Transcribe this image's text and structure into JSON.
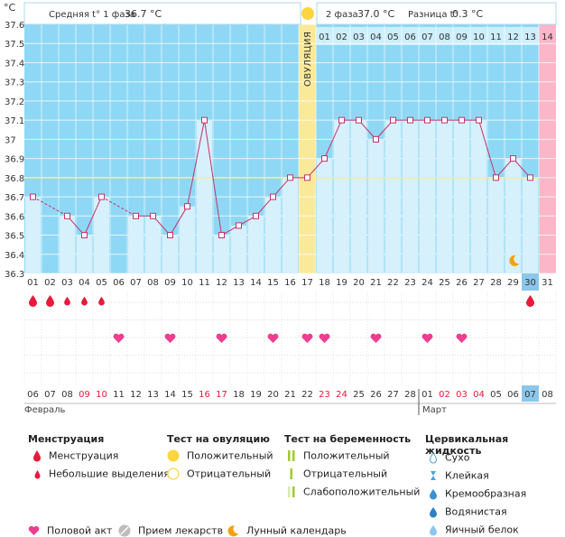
{
  "header": {
    "phase1_label": "Средняя t° 1 фаза",
    "phase1_value": "36.7 °C",
    "phase2_label": "2 фаза",
    "phase2_value": "37.0 °C",
    "diff_label": "Разница t°",
    "diff_value": "0.3 °C"
  },
  "chart_data": {
    "type": "line",
    "ylabel": "°C",
    "ylim": [
      36.3,
      37.6
    ],
    "y_ticks": [
      "37.6",
      "37.5",
      "37.4",
      "37.3",
      "37.2",
      "37.1",
      "37",
      "36.9",
      "36.8",
      "36.7",
      "36.6",
      "36.5",
      "36.4",
      "36.3"
    ],
    "cycle_days": [
      "01",
      "02",
      "03",
      "04",
      "05",
      "06",
      "07",
      "08",
      "09",
      "10",
      "11",
      "12",
      "13",
      "14",
      "15",
      "16",
      "17",
      "18",
      "19",
      "20",
      "21",
      "22",
      "23",
      "24",
      "25",
      "26",
      "27",
      "28",
      "29",
      "30",
      "31"
    ],
    "cover_line": 36.8,
    "ovulation_label": "ОВУЛЯЦИЯ",
    "ovulation_day": 17,
    "luteal_days": [
      "01",
      "02",
      "03",
      "04",
      "05",
      "06",
      "07",
      "08",
      "09",
      "10",
      "11",
      "12",
      "13",
      "14"
    ],
    "series": [
      {
        "values": [
          36.7,
          null,
          36.6,
          36.5,
          36.7,
          null,
          36.6,
          36.6,
          36.5,
          36.65,
          37.1,
          36.5,
          36.55,
          36.6,
          36.7,
          36.8,
          36.8,
          36.9,
          37.1,
          37.1,
          37.0,
          37.1,
          37.1,
          37.1,
          37.1,
          37.1,
          37.1,
          36.8,
          36.9,
          36.8,
          null
        ]
      }
    ],
    "menstruation": {
      "large_days": [
        1,
        2,
        30
      ],
      "small_days": [
        3,
        4,
        5
      ]
    },
    "intercourse_days": [
      6,
      9,
      12,
      15,
      17,
      18,
      21,
      24,
      26
    ],
    "moon_day": 29,
    "today_day": 30,
    "dates": [
      "06",
      "07",
      "08",
      "09",
      "10",
      "11",
      "12",
      "13",
      "14",
      "15",
      "16",
      "17",
      "18",
      "19",
      "20",
      "21",
      "22",
      "23",
      "24",
      "25",
      "26",
      "27",
      "28",
      "01",
      "02",
      "03",
      "04",
      "05",
      "06",
      "07",
      "08"
    ],
    "red_date_indices": [
      3,
      4,
      10,
      11,
      17,
      18,
      24,
      25,
      26
    ],
    "months": [
      "Февраль",
      "Март"
    ],
    "month_change_index": 23
  },
  "colors": {
    "phase1": "#8fd8f5",
    "phase1_light": "#d6f0fc",
    "phase2": "#cdeefd",
    "ovulation": "#fbe99a",
    "last_day": "#fbb6c9",
    "line": "#c8306a",
    "cover_line": "#f3ef93",
    "red": "#e8193c",
    "pink": "#ee3e8f",
    "today": "#8bc7ea"
  },
  "legend": {
    "menstruation": {
      "title": "Менструация",
      "items": [
        "Менструация",
        "Небольшие выделения"
      ]
    },
    "ovulation_test": {
      "title": "Тест на овуляцию",
      "items": [
        "Положительный",
        "Отрицательный"
      ]
    },
    "pregnancy_test": {
      "title": "Тест на беременность",
      "items": [
        "Положительный",
        "Отрицательный",
        "Слабоположительный"
      ]
    },
    "cervical": {
      "title": "Цервикальная жидкость",
      "items": [
        "Сухо",
        "Клейкая",
        "Кремообразная",
        "Водянистая",
        "Яичный белок"
      ]
    },
    "bottom": [
      "Половой акт",
      "Прием лекарств",
      "Лунный календарь"
    ]
  }
}
